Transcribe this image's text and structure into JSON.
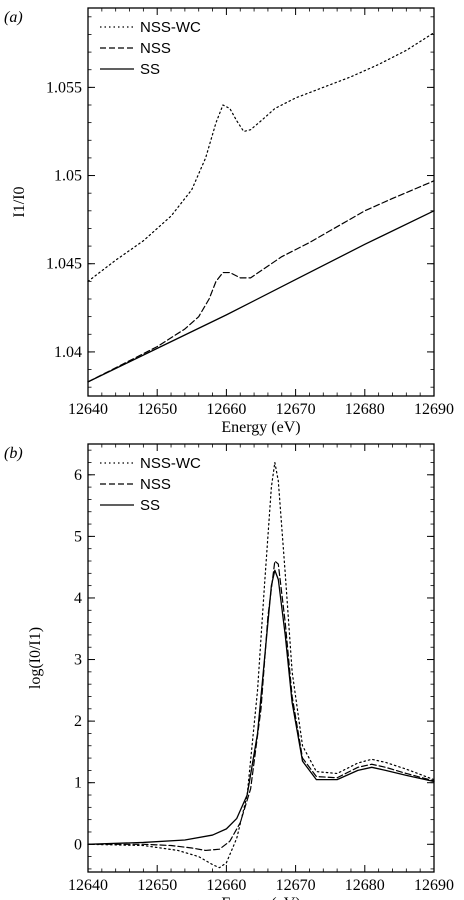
{
  "chart_data": [
    {
      "type": "line",
      "panel_label": "(a)",
      "xlabel": "Energy (eV)",
      "ylabel": "I1/I0",
      "xlim": [
        12640,
        12690
      ],
      "ylim": [
        1.0375,
        1.0595
      ],
      "x_ticks": [
        12640,
        12650,
        12660,
        12670,
        12680,
        12690
      ],
      "x_tick_labels": [
        "12640",
        "12650",
        "12660",
        "12670",
        "12680",
        "12690"
      ],
      "y_ticks": [
        1.04,
        1.045,
        1.05,
        1.055
      ],
      "y_tick_labels": [
        "1.04",
        "1.045",
        "1.05",
        "1.055"
      ],
      "grid": false,
      "legend_position": "top-left",
      "series": [
        {
          "name": "NSS-WC",
          "style": "dotted",
          "x": [
            12640,
            12644,
            12648,
            12652,
            12655,
            12657,
            12658.5,
            12659.5,
            12660.5,
            12661.5,
            12662.5,
            12663.5,
            12665,
            12667,
            12670,
            12674,
            12678,
            12682,
            12686,
            12690
          ],
          "y": [
            1.044,
            1.0452,
            1.0463,
            1.0477,
            1.0492,
            1.051,
            1.053,
            1.054,
            1.0538,
            1.0531,
            1.0525,
            1.0526,
            1.0531,
            1.0538,
            1.0544,
            1.055,
            1.0556,
            1.0563,
            1.0571,
            1.0581
          ]
        },
        {
          "name": "NSS",
          "style": "dashed",
          "x": [
            12640,
            12645,
            12650,
            12654,
            12656,
            12657.5,
            12658.5,
            12659.5,
            12660.5,
            12662,
            12663.5,
            12665,
            12668,
            12672,
            12676,
            12680,
            12684,
            12690
          ],
          "y": [
            1.0383,
            1.0393,
            1.0403,
            1.0413,
            1.042,
            1.043,
            1.044,
            1.0445,
            1.0445,
            1.0442,
            1.0442,
            1.0446,
            1.0454,
            1.0462,
            1.0471,
            1.048,
            1.0487,
            1.0497
          ]
        },
        {
          "name": "SS",
          "style": "solid",
          "x": [
            12640,
            12650,
            12660,
            12670,
            12680,
            12690
          ],
          "y": [
            1.0383,
            1.0402,
            1.0421,
            1.0441,
            1.0461,
            1.048
          ]
        }
      ]
    },
    {
      "type": "line",
      "panel_label": "(b)",
      "xlabel": "Energy (eV)",
      "ylabel": "log(I0/I1)",
      "xlim": [
        12640,
        12690
      ],
      "ylim": [
        -0.45,
        6.5
      ],
      "x_ticks": [
        12640,
        12650,
        12660,
        12670,
        12680,
        12690
      ],
      "x_tick_labels": [
        "12640",
        "12650",
        "12660",
        "12670",
        "12680",
        "12690"
      ],
      "y_ticks": [
        0,
        1,
        2,
        3,
        4,
        5,
        6
      ],
      "y_tick_labels": [
        "0",
        "1",
        "2",
        "3",
        "4",
        "5",
        "6"
      ],
      "grid": false,
      "legend_position": "top-left",
      "series": [
        {
          "name": "NSS-WC",
          "style": "dotted",
          "x": [
            12640,
            12648,
            12653,
            12656,
            12658,
            12659,
            12660,
            12661.5,
            12663,
            12664.5,
            12665.5,
            12666.5,
            12667,
            12667.5,
            12668.5,
            12669.5,
            12671,
            12673,
            12676,
            12679,
            12681,
            12683,
            12686,
            12690
          ],
          "y": [
            0.0,
            -0.02,
            -0.1,
            -0.2,
            -0.33,
            -0.38,
            -0.3,
            0.1,
            0.8,
            2.5,
            4.2,
            5.8,
            6.2,
            5.9,
            4.4,
            2.8,
            1.6,
            1.18,
            1.15,
            1.32,
            1.38,
            1.33,
            1.22,
            1.05
          ]
        },
        {
          "name": "NSS",
          "style": "dashed",
          "x": [
            12640,
            12648,
            12652,
            12655,
            12657,
            12659,
            12660.5,
            12662,
            12663.5,
            12665,
            12666,
            12667,
            12667.5,
            12668.5,
            12669.5,
            12671,
            12673,
            12676,
            12679,
            12681,
            12683,
            12686,
            12690
          ],
          "y": [
            0.0,
            0.0,
            -0.02,
            -0.06,
            -0.1,
            -0.08,
            0.05,
            0.35,
            0.9,
            2.2,
            3.7,
            4.6,
            4.55,
            3.6,
            2.4,
            1.4,
            1.1,
            1.08,
            1.25,
            1.3,
            1.25,
            1.15,
            1.03
          ]
        },
        {
          "name": "SS",
          "style": "solid",
          "x": [
            12640,
            12648,
            12654,
            12658,
            12660,
            12661.5,
            12663,
            12664.5,
            12665.5,
            12666.5,
            12667,
            12667.5,
            12668.5,
            12669.5,
            12671,
            12673,
            12676,
            12679,
            12681,
            12683,
            12686,
            12690
          ],
          "y": [
            0.0,
            0.03,
            0.07,
            0.15,
            0.25,
            0.42,
            0.8,
            1.8,
            3.0,
            4.2,
            4.45,
            4.3,
            3.4,
            2.3,
            1.35,
            1.05,
            1.05,
            1.2,
            1.25,
            1.2,
            1.12,
            1.02
          ]
        }
      ]
    }
  ]
}
